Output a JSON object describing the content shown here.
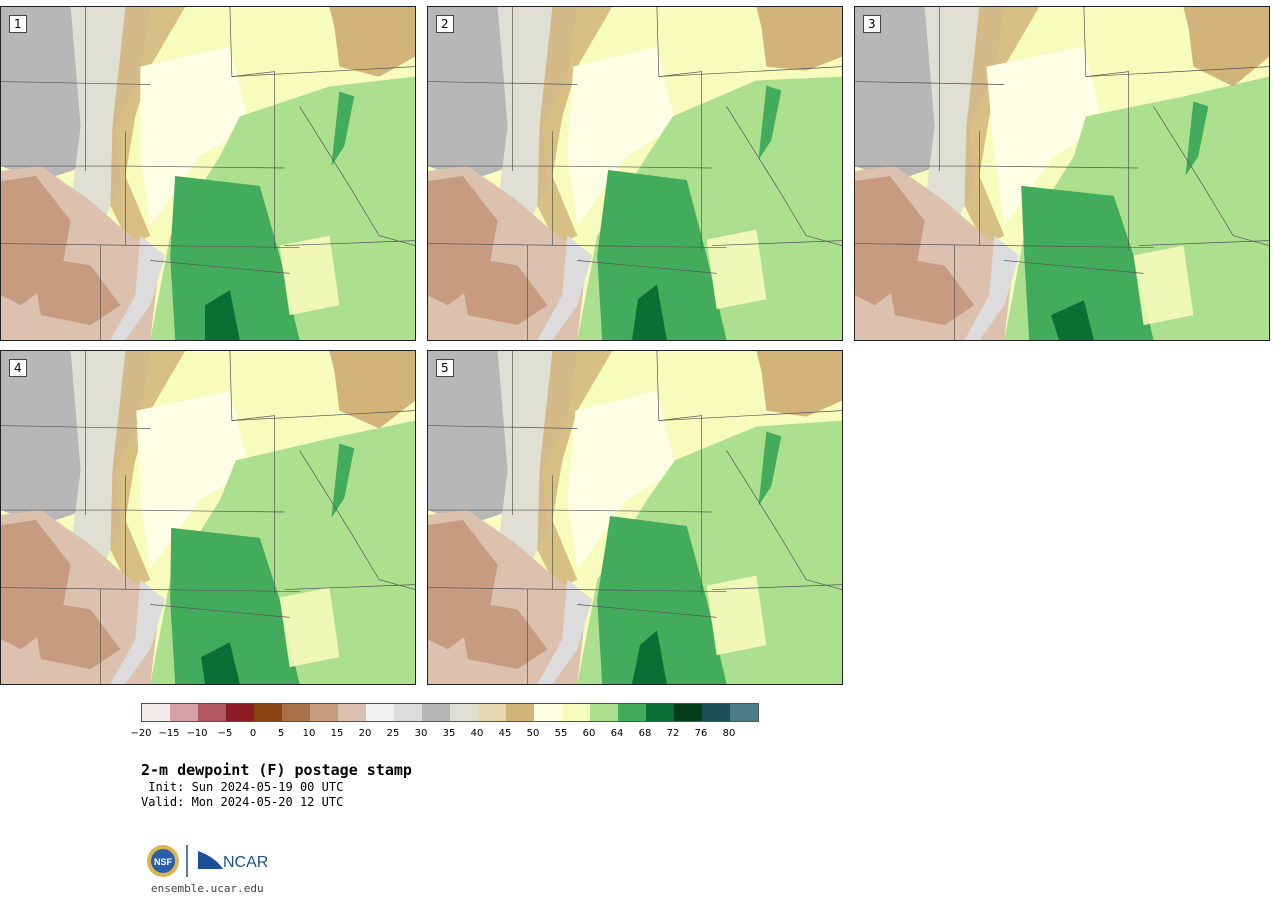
{
  "panels": [
    {
      "label": "1"
    },
    {
      "label": "2"
    },
    {
      "label": "3"
    },
    {
      "label": "4"
    },
    {
      "label": "5"
    }
  ],
  "colorbar": {
    "colors": [
      "#f5e9ea",
      "#d6a1a6",
      "#b0585f",
      "#8c1c23",
      "#8b4513",
      "#a8714a",
      "#c69b7f",
      "#dcc2ae",
      "#f2f2f2",
      "#dcdcdc",
      "#b7b7b7",
      "#dfdfd3",
      "#e6d9b1",
      "#d2b47a",
      "#fefee5",
      "#f7fbbc",
      "#ace08e",
      "#43ab5c",
      "#0b6e35",
      "#043d1d",
      "#1b4f55",
      "#4e7d87"
    ],
    "ticks": [
      "−20",
      "−15",
      "−10",
      "−5",
      "0",
      "5",
      "10",
      "15",
      "20",
      "25",
      "30",
      "35",
      "40",
      "45",
      "50",
      "55",
      "60",
      "64",
      "68",
      "72",
      "76",
      "80"
    ]
  },
  "title": "2-m dewpoint (F) postage stamp",
  "init": " Init: Sun 2024-05-19 00 UTC",
  "valid": "Valid: Mon 2024-05-20 12 UTC",
  "logo": {
    "nsf": "NSF",
    "ncar": "NCAR"
  },
  "url": "ensemble.ucar.edu"
}
